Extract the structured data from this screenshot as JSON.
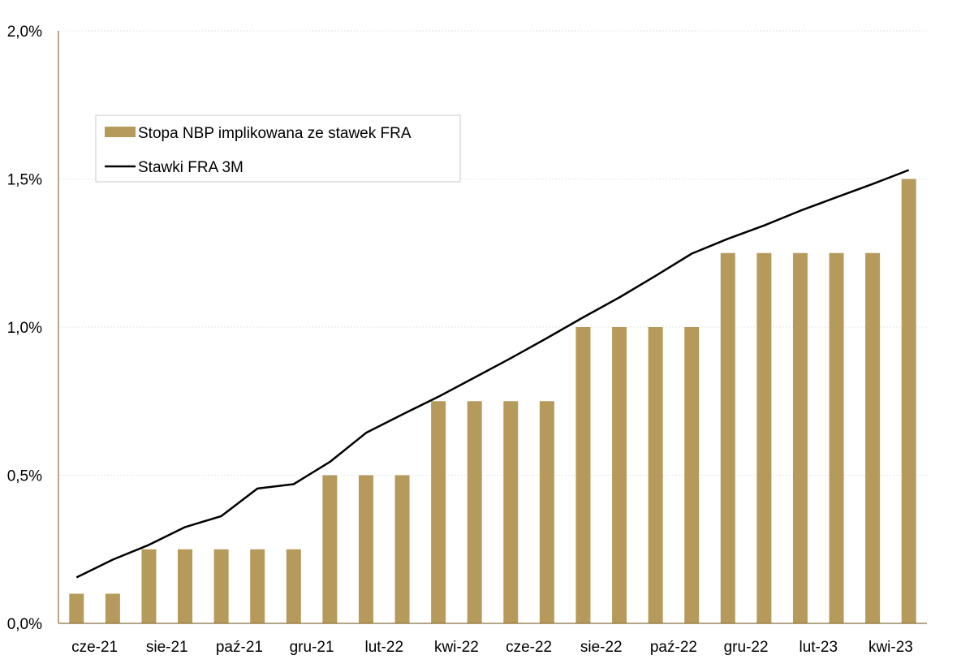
{
  "chart_data": {
    "type": "bar",
    "title": "",
    "xlabel": "",
    "ylabel": "",
    "ylim": [
      0,
      2.0
    ],
    "y_ticks": [
      {
        "value": 0.0,
        "label": "0,0%"
      },
      {
        "value": 0.5,
        "label": "0,5%"
      },
      {
        "value": 1.0,
        "label": "1,0%"
      },
      {
        "value": 1.5,
        "label": "1,5%"
      },
      {
        "value": 2.0,
        "label": "2,0%"
      }
    ],
    "x_tick_labels": [
      "cze-21",
      "sie-21",
      "paź-21",
      "gru-21",
      "lut-22",
      "kwi-22",
      "cze-22",
      "sie-22",
      "paź-22",
      "gru-22",
      "lut-23",
      "kwi-23"
    ],
    "grid": true,
    "legend_position": "top-left",
    "series": [
      {
        "name": "Stopa NBP implikowana ze stawek FRA",
        "type": "bar",
        "color": "#B69A5B",
        "values": [
          0.1,
          0.1,
          0.25,
          0.25,
          0.25,
          0.25,
          0.25,
          0.5,
          0.5,
          0.5,
          0.75,
          0.75,
          0.75,
          0.75,
          1.0,
          1.0,
          1.0,
          1.0,
          1.25,
          1.25,
          1.25,
          1.25,
          1.25,
          1.5
        ]
      },
      {
        "name": "Stawki FRA 3M",
        "type": "line",
        "color": "#000000",
        "values": [
          0.155,
          0.215,
          0.265,
          0.325,
          0.362,
          0.455,
          0.47,
          0.545,
          0.643,
          0.705,
          0.765,
          0.83,
          0.895,
          0.963,
          1.033,
          1.1,
          1.173,
          1.248,
          1.298,
          1.343,
          1.393,
          1.438,
          1.483,
          1.53
        ]
      }
    ]
  },
  "colors": {
    "axis": "#8B6F3A",
    "grid": "#E6E6E6",
    "bar": "#B69A5B",
    "line": "#000000",
    "legend_border": "#C8C8C8"
  }
}
